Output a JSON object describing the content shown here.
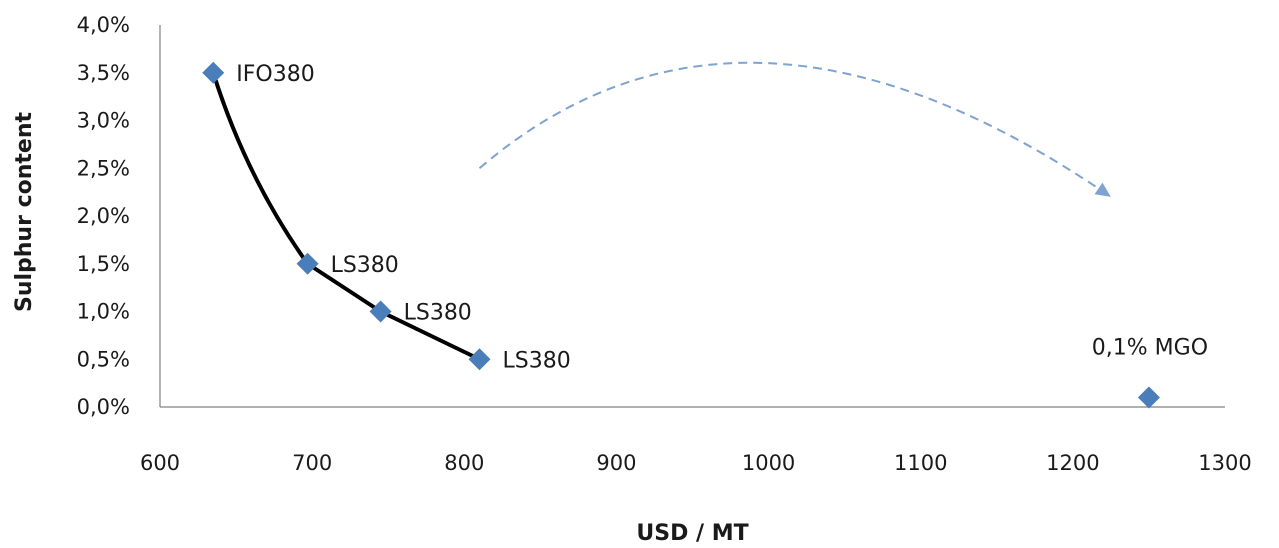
{
  "chart_data": {
    "type": "scatter",
    "xlabel": "USD / MT",
    "ylabel": "Sulphur content",
    "xlim": [
      600,
      1300
    ],
    "ylim": [
      0,
      4
    ],
    "x_ticks": [
      "600",
      "700",
      "800",
      "900",
      "1000",
      "1100",
      "1200",
      "1300"
    ],
    "y_ticks": [
      "0,0%",
      "0,5%",
      "1,0%",
      "1,5%",
      "2,0%",
      "2,5%",
      "3,0%",
      "3,5%",
      "4,0%"
    ],
    "points": [
      {
        "x": 635,
        "y": 3.5,
        "label": "IFO380"
      },
      {
        "x": 697,
        "y": 1.5,
        "label": "LS380"
      },
      {
        "x": 745,
        "y": 1.0,
        "label": "LS380"
      },
      {
        "x": 810,
        "y": 0.5,
        "label": "LS380"
      },
      {
        "x": 1250,
        "y": 0.1,
        "label": "0,1% MGO"
      }
    ],
    "trend_line_through_points": [
      0,
      1,
      2,
      3
    ],
    "arrow": {
      "style": "dashed",
      "from": [
        810,
        2.5
      ],
      "peak": [
        1000,
        3.6
      ],
      "to": [
        1225,
        2.2
      ]
    },
    "grid": false,
    "legend": "none",
    "colors": {
      "marker": "#4a7ebb",
      "line": "#000000",
      "arrow": "#7fa3d1",
      "axis": "#808080"
    }
  }
}
